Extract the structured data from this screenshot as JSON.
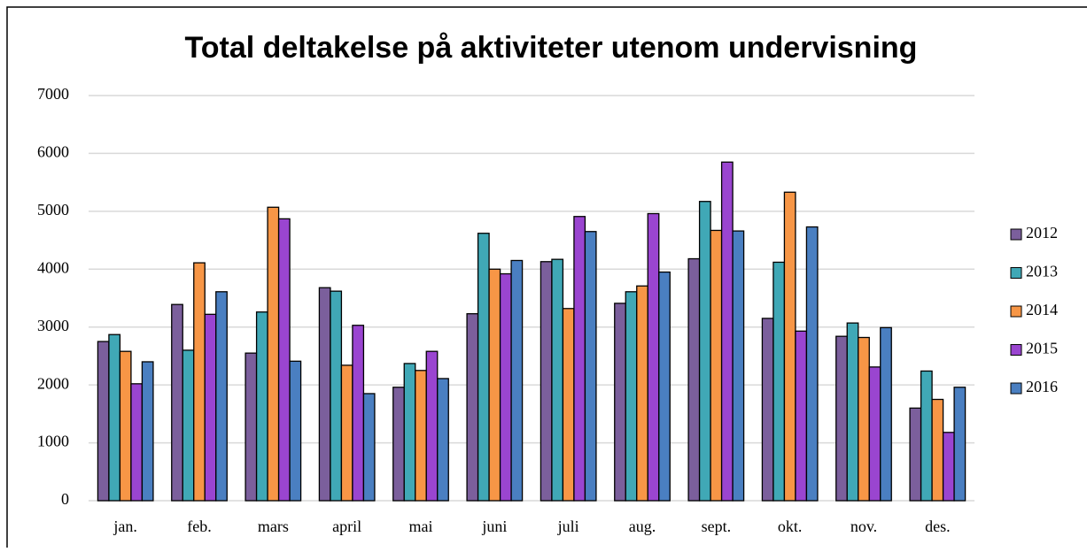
{
  "chart_data": {
    "type": "bar",
    "title": "Total deltakelse på aktiviteter utenom undervisning",
    "categories": [
      "jan.",
      "feb.",
      "mars",
      "april",
      "mai",
      "juni",
      "juli",
      "aug.",
      "sept.",
      "okt.",
      "nov.",
      "des."
    ],
    "series": [
      {
        "name": "2012",
        "color": "#7b5f9c",
        "values": [
          2750,
          3390,
          2550,
          3680,
          1960,
          3230,
          4130,
          3410,
          4180,
          3150,
          2840,
          1600
        ]
      },
      {
        "name": "2013",
        "color": "#40a8b6",
        "values": [
          2870,
          2600,
          3260,
          3620,
          2370,
          4620,
          4170,
          3610,
          5170,
          4120,
          3070,
          2240
        ]
      },
      {
        "name": "2014",
        "color": "#f79646",
        "values": [
          2580,
          4110,
          5070,
          2340,
          2250,
          4000,
          3320,
          3710,
          4670,
          5330,
          2820,
          1750
        ]
      },
      {
        "name": "2015",
        "color": "#9a45d0",
        "values": [
          2020,
          3220,
          4870,
          3030,
          2580,
          3920,
          4910,
          4960,
          5850,
          2930,
          2310,
          1180
        ]
      },
      {
        "name": "2016",
        "color": "#4a7fc1",
        "values": [
          2400,
          3610,
          2410,
          1850,
          2110,
          4150,
          4650,
          3950,
          4660,
          4730,
          2990,
          1960
        ]
      }
    ],
    "ylim": [
      0,
      7000
    ],
    "yticks": [
      0,
      1000,
      2000,
      3000,
      4000,
      5000,
      6000,
      7000
    ],
    "grid": true,
    "legend": "right"
  }
}
